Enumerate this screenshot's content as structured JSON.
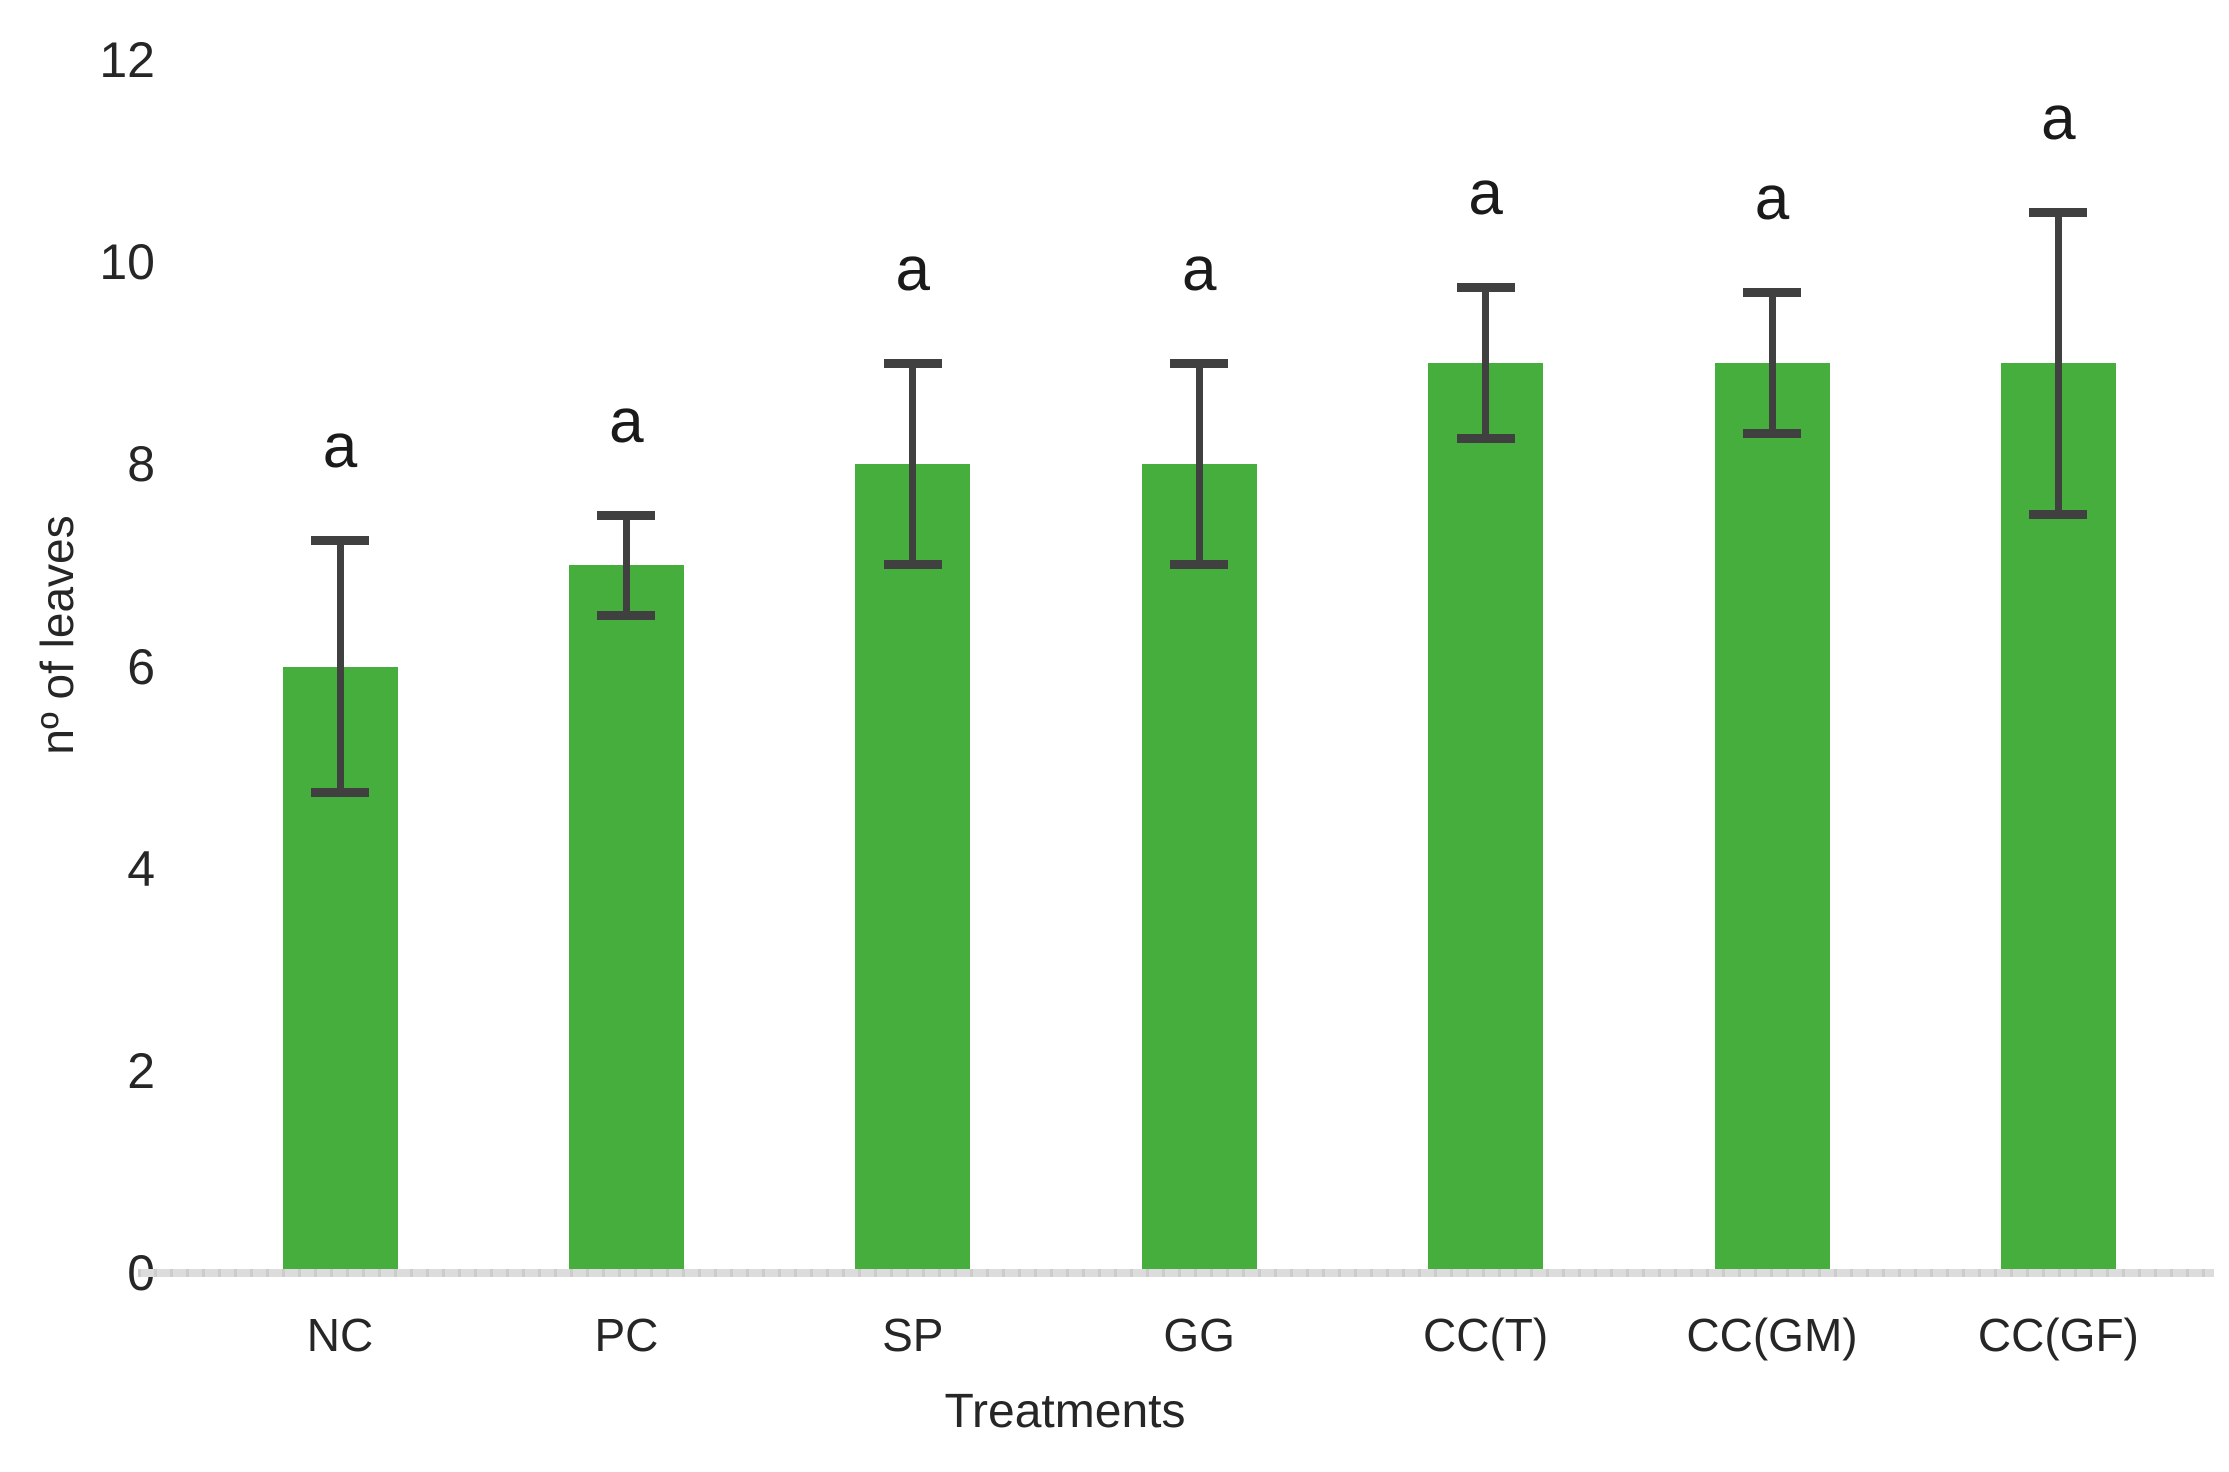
{
  "chart_data": {
    "type": "bar",
    "title": "",
    "xlabel": "Treatments",
    "ylabel": "nº of leaves",
    "categories": [
      "NC",
      "PC",
      "SP",
      "GG",
      "CC(T)",
      "CC(GM)",
      "CC(GF)"
    ],
    "values": [
      6,
      7,
      8,
      8,
      9,
      9,
      9
    ],
    "error_high": [
      7.25,
      7.5,
      9,
      9,
      9.75,
      9.7,
      10.5
    ],
    "error_low": [
      4.75,
      6.5,
      7,
      7,
      8.25,
      8.3,
      7.5
    ],
    "sig_labels": [
      "a",
      "a",
      "a",
      "a",
      "a",
      "a",
      "a"
    ],
    "y_ticks": [
      0,
      2,
      4,
      6,
      8,
      10,
      12
    ],
    "ylim": [
      0,
      12
    ],
    "legend_position": "none",
    "grid": "off",
    "bar_color": "#46ae3c",
    "error_color": "#404040",
    "axis_line_color": "#d9d9d9",
    "text_color": "#262626",
    "background_color": "#ffffff"
  }
}
